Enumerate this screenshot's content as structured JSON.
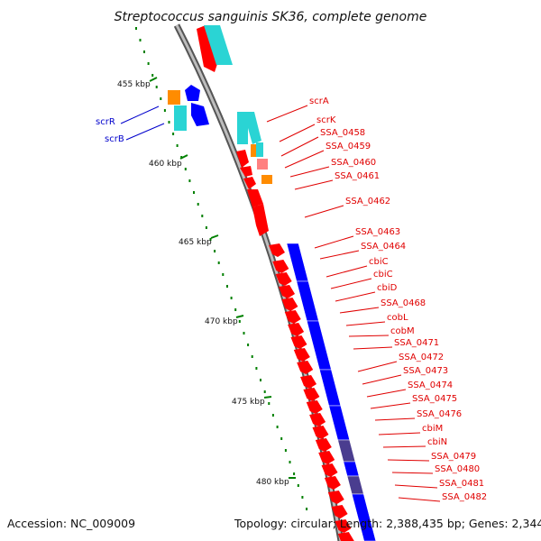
{
  "title": "Streptococcus sanguinis SK36, complete genome",
  "footer": {
    "accession": "Accession: NC_009009",
    "summary": "Topology: circular; Length: 2,388,435 bp; Genes: 2,344"
  },
  "ticks": [
    "455 kbp",
    "460 kbp",
    "465 kbp",
    "470 kbp",
    "475 kbp",
    "480 kbp"
  ],
  "labels_right": [
    "scrA",
    "scrK",
    "SSA_0458",
    "SSA_0459",
    "SSA_0460",
    "SSA_0461",
    "SSA_0462",
    "SSA_0463",
    "SSA_0464",
    "cbiC",
    "cbiC",
    "cbiD",
    "SSA_0468",
    "cobL",
    "cobM",
    "SSA_0471",
    "SSA_0472",
    "SSA_0473",
    "SSA_0474",
    "SSA_0475",
    "SSA_0476",
    "cbiM",
    "cbiN",
    "SSA_0479",
    "SSA_0480",
    "SSA_0481",
    "SSA_0482"
  ],
  "labels_left": [
    "scrR",
    "scrB"
  ],
  "colors": {
    "cds": "#ff0000",
    "cds_light": "#ff8080",
    "blue": "#0000ff",
    "navy": "#4a3d8f",
    "cyan": "#2ad4d4",
    "orange": "#ff8c00",
    "backbone": "#8c8c8c",
    "tick": "#008000",
    "label_red": "#e00000",
    "label_blue": "#0000cc"
  }
}
